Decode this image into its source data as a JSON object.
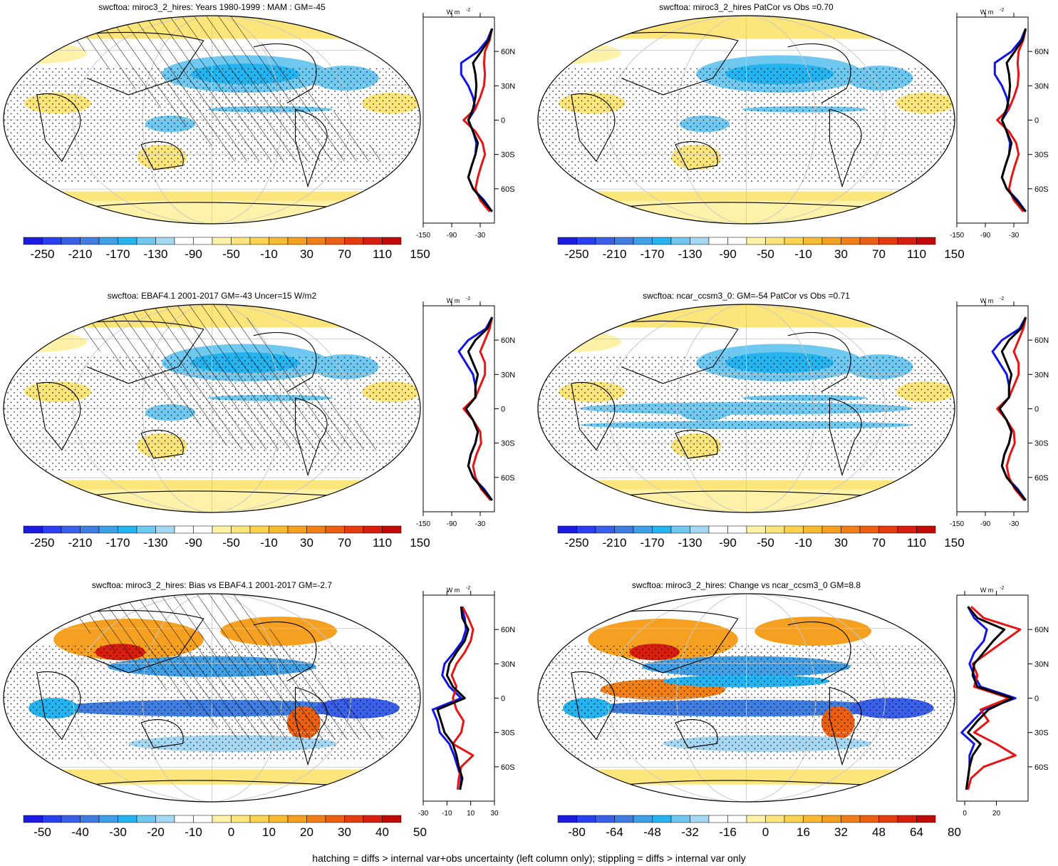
{
  "figure": {
    "footer": "hatching = diffs > internal var+obs uncertainty (left column only); stippling = diffs > internal var only",
    "lat_labels": [
      "60N",
      "30N",
      "0",
      "30S",
      "60S"
    ],
    "profile_unit": "W m",
    "profile_unit_exp": "-2",
    "colors": {
      "model_line": "#000000",
      "obs_line": "#1414e6",
      "compare_line": "#e61414",
      "map_land_outline": "#000000",
      "graticule": "#c8c8c8"
    },
    "palette": [
      "#1c1ce0",
      "#2a3ff0",
      "#3a5fe8",
      "#3f7de0",
      "#3fa0e8",
      "#25b4f0",
      "#6ec8f0",
      "#a6d8f4",
      "#ffffff",
      "#ffffff",
      "#fdf2a8",
      "#fce57a",
      "#fbd34f",
      "#f8bb2f",
      "#f5a020",
      "#f07f18",
      "#eb5f12",
      "#e43c0e",
      "#d81e0e",
      "#c00a0a"
    ]
  },
  "chart_data": [
    {
      "type": "heatmap",
      "title": "swcftoa: miroc3_2_hires: Years 1980-1999 : MAM : GM=-45",
      "colorbar_labels": [
        "-250",
        "-210",
        "-170",
        "-130",
        "-90",
        "-50",
        "-10",
        "30",
        "70",
        "110",
        "150"
      ],
      "profile_ticks": [
        "-150",
        "-90",
        "-30"
      ],
      "profile_xlim": [
        -150,
        0
      ],
      "hatching": true,
      "lines": {
        "lat": [
          80,
          70,
          60,
          50,
          40,
          30,
          20,
          10,
          0,
          -10,
          -20,
          -30,
          -40,
          -50,
          -60,
          -70,
          -80
        ],
        "model": [
          -5,
          -12,
          -28,
          -45,
          -40,
          -38,
          -40,
          -45,
          -55,
          -45,
          -35,
          -40,
          -48,
          -55,
          -45,
          -25,
          -5
        ],
        "obs": [
          -5,
          -15,
          -35,
          -70,
          -70,
          -55,
          -45,
          -40,
          -55,
          -45,
          -38,
          -40,
          -48,
          -55,
          -45,
          -22,
          -5
        ],
        "compare": [
          -5,
          -10,
          -20,
          -22,
          -20,
          -22,
          -30,
          -40,
          -65,
          -40,
          -25,
          -20,
          -28,
          -35,
          -40,
          -30,
          -10
        ]
      }
    },
    {
      "type": "heatmap",
      "title": "swcftoa: miroc3_2_hires PatCor vs Obs =0.70",
      "colorbar_labels": [
        "-250",
        "-210",
        "-170",
        "-130",
        "-90",
        "-50",
        "-10",
        "30",
        "70",
        "110",
        "150"
      ],
      "profile_ticks": [
        "-150",
        "-90",
        "-30"
      ],
      "profile_xlim": [
        -150,
        0
      ],
      "hatching": false,
      "lines": {
        "lat": [
          80,
          70,
          60,
          50,
          40,
          30,
          20,
          10,
          0,
          -10,
          -20,
          -30,
          -40,
          -50,
          -60,
          -70,
          -80
        ],
        "model": [
          -5,
          -12,
          -28,
          -45,
          -40,
          -38,
          -40,
          -45,
          -55,
          -45,
          -35,
          -40,
          -48,
          -55,
          -45,
          -25,
          -5
        ],
        "obs": [
          -5,
          -15,
          -35,
          -70,
          -70,
          -55,
          -45,
          -40,
          -55,
          -45,
          -38,
          -40,
          -48,
          -55,
          -45,
          -22,
          -5
        ],
        "compare": [
          -5,
          -10,
          -20,
          -22,
          -20,
          -22,
          -30,
          -40,
          -65,
          -40,
          -25,
          -20,
          -28,
          -35,
          -40,
          -30,
          -10
        ]
      }
    },
    {
      "type": "heatmap",
      "title": "swcftoa: EBAF4.1 2001-2017 GM=-43 Uncer=15 W/m2",
      "colorbar_labels": [
        "-250",
        "-210",
        "-170",
        "-130",
        "-90",
        "-50",
        "-10",
        "30",
        "70",
        "110",
        "150"
      ],
      "profile_ticks": [
        "-150",
        "-90",
        "-30"
      ],
      "profile_xlim": [
        -150,
        0
      ],
      "hatching": true,
      "lines": {
        "lat": [
          80,
          70,
          60,
          50,
          40,
          30,
          20,
          10,
          0,
          -10,
          -20,
          -30,
          -40,
          -50,
          -60,
          -70,
          -80
        ],
        "model": [
          -5,
          -15,
          -40,
          -55,
          -45,
          -35,
          -40,
          -40,
          -60,
          -45,
          -35,
          -40,
          -50,
          -55,
          -45,
          -25,
          -5
        ],
        "obs": [
          -5,
          -18,
          -55,
          -75,
          -60,
          -45,
          -40,
          -40,
          -60,
          -45,
          -35,
          -40,
          -50,
          -55,
          -45,
          -22,
          -5
        ],
        "compare": [
          -5,
          -10,
          -20,
          -30,
          -20,
          -20,
          -30,
          -40,
          -65,
          -45,
          -30,
          -28,
          -38,
          -45,
          -40,
          -28,
          -8
        ]
      }
    },
    {
      "type": "heatmap",
      "title": "swcftoa: ncar_ccsm3_0: GM=-54 PatCor vs Obs =0.71",
      "colorbar_labels": [
        "-250",
        "-210",
        "-170",
        "-130",
        "-90",
        "-50",
        "-10",
        "30",
        "70",
        "110",
        "150"
      ],
      "profile_ticks": [
        "-150",
        "-90",
        "-30"
      ],
      "profile_xlim": [
        -150,
        0
      ],
      "hatching": false,
      "lines": {
        "lat": [
          80,
          70,
          60,
          50,
          40,
          30,
          20,
          10,
          0,
          -10,
          -20,
          -30,
          -40,
          -50,
          -60,
          -70,
          -80
        ],
        "model": [
          -5,
          -15,
          -40,
          -55,
          -45,
          -35,
          -40,
          -40,
          -60,
          -45,
          -35,
          -40,
          -50,
          -55,
          -45,
          -25,
          -5
        ],
        "obs": [
          -5,
          -18,
          -55,
          -75,
          -60,
          -45,
          -40,
          -40,
          -60,
          -45,
          -35,
          -40,
          -50,
          -55,
          -45,
          -22,
          -5
        ],
        "compare": [
          -5,
          -10,
          -20,
          -30,
          -20,
          -20,
          -30,
          -40,
          -65,
          -45,
          -30,
          -28,
          -38,
          -45,
          -40,
          -28,
          -8
        ]
      }
    },
    {
      "type": "heatmap",
      "title": "swcftoa: miroc3_2_hires: Bias vs EBAF4.1 2001-2017 GM=-2.7",
      "colorbar_labels": [
        "-50",
        "-40",
        "-30",
        "-20",
        "-10",
        "0",
        "10",
        "20",
        "30",
        "40",
        "50"
      ],
      "profile_ticks": [
        "-30",
        "-10",
        "10",
        "30"
      ],
      "profile_xlim": [
        -30,
        30
      ],
      "hatching": true,
      "lines": {
        "lat": [
          80,
          70,
          60,
          50,
          40,
          30,
          20,
          10,
          0,
          -10,
          -20,
          -30,
          -40,
          -50,
          -60,
          -70,
          -80
        ],
        "model": [
          2,
          3,
          8,
          5,
          -2,
          -8,
          -10,
          -5,
          5,
          -18,
          -15,
          -12,
          -5,
          -2,
          0,
          3,
          1
        ],
        "obs": [
          2,
          5,
          6,
          3,
          -4,
          -12,
          -14,
          -8,
          2,
          -22,
          -18,
          -16,
          -8,
          -4,
          -1,
          2,
          1
        ],
        "compare": [
          3,
          8,
          12,
          10,
          5,
          -2,
          -6,
          -2,
          -5,
          -2,
          4,
          2,
          -5,
          12,
          2,
          0,
          -1
        ]
      }
    },
    {
      "type": "heatmap",
      "title": "swcftoa: miroc3_2_hires: Change vs ncar_ccsm3_0 GM=8.8",
      "colorbar_labels": [
        "-80",
        "-64",
        "-48",
        "-32",
        "-16",
        "0",
        "16",
        "32",
        "48",
        "64",
        "80"
      ],
      "profile_ticks": [
        "0",
        "20"
      ],
      "profile_xlim": [
        -5,
        40
      ],
      "hatching": false,
      "lines": {
        "lat": [
          80,
          70,
          60,
          50,
          40,
          30,
          20,
          10,
          0,
          -10,
          -20,
          -30,
          -40,
          -50,
          -60,
          -70,
          -80
        ],
        "model": [
          2,
          8,
          25,
          18,
          12,
          6,
          5,
          8,
          30,
          15,
          8,
          2,
          10,
          5,
          3,
          2,
          1
        ],
        "obs": [
          2,
          6,
          14,
          12,
          6,
          3,
          6,
          10,
          32,
          12,
          5,
          -2,
          6,
          3,
          3,
          2,
          1
        ],
        "compare": [
          4,
          12,
          35,
          25,
          15,
          5,
          8,
          6,
          28,
          10,
          15,
          6,
          20,
          32,
          12,
          4,
          2
        ]
      }
    }
  ]
}
